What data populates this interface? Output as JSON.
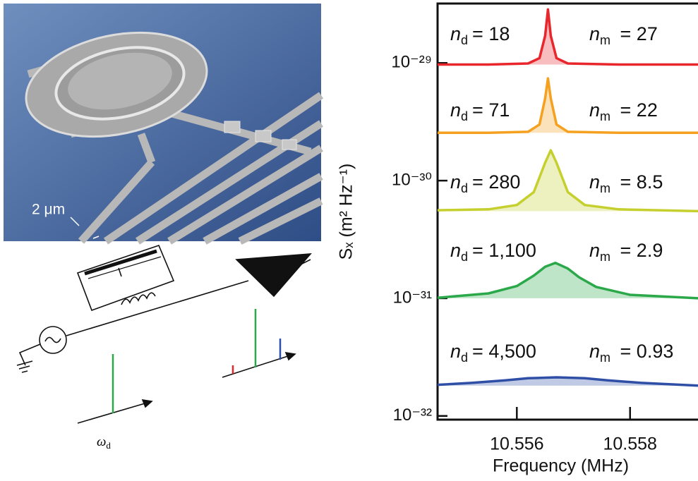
{
  "image_panel": {
    "scale_label": "2 μm"
  },
  "circuit": {
    "drive_label": {
      "symbol": "ω",
      "subscript": "d"
    }
  },
  "chart_data": {
    "type": "line",
    "x_label": "Frequency (MHz)",
    "y_label": "Sₓ (m² Hz⁻¹)",
    "xlim": [
      10.5546,
      10.5592
    ],
    "xticks": [
      10.556,
      10.558
    ],
    "ylim": [
      9.3e-33,
      3.2e-29
    ],
    "y_scale": "log",
    "yticks": [
      {
        "value": 1e-32,
        "label": "10⁻³²"
      },
      {
        "value": 1e-31,
        "label": "10⁻³¹"
      },
      {
        "value": 1e-30,
        "label": "10⁻³⁰"
      },
      {
        "value": 1e-29,
        "label": "10⁻²⁹"
      }
    ],
    "series": [
      {
        "color": "#e8262b",
        "x": [
          10.5546,
          10.5555,
          10.5562,
          10.5564,
          10.5565,
          10.55655,
          10.5566,
          10.5567,
          10.5569,
          10.5578,
          10.5592
        ],
        "values": [
          9.7e-30,
          9.7e-30,
          9.9e-30,
          1.1e-29,
          1.7e-29,
          2.85e-29,
          1.7e-29,
          1.1e-29,
          9.9e-30,
          9.7e-30,
          9.7e-30
        ]
      },
      {
        "color": "#f5a01e",
        "x": [
          10.5546,
          10.5555,
          10.5562,
          10.5564,
          10.5565,
          10.55655,
          10.5566,
          10.5567,
          10.5569,
          10.5578,
          10.5592
        ],
        "values": [
          2.55e-30,
          2.55e-30,
          2.6e-30,
          3e-30,
          5e-30,
          7.4e-30,
          5e-30,
          3e-30,
          2.6e-30,
          2.55e-30,
          2.55e-30
        ]
      },
      {
        "color": "#c5d02e",
        "x": [
          10.5546,
          10.5555,
          10.556,
          10.5563,
          10.5565,
          10.5566,
          10.5567,
          10.5569,
          10.5572,
          10.5578,
          10.5592
        ],
        "values": [
          5.6e-31,
          5.7e-31,
          6.2e-31,
          8e-31,
          1.42e-30,
          1.81e-30,
          1.42e-30,
          8e-31,
          6.2e-31,
          5.7e-31,
          5.5e-31
        ]
      },
      {
        "color": "#2ba84a",
        "x": [
          10.5546,
          10.5555,
          10.556,
          10.5563,
          10.5565,
          10.55668,
          10.5569,
          10.5571,
          10.5574,
          10.558,
          10.5592
        ],
        "values": [
          1.01e-31,
          1.1e-31,
          1.27e-31,
          1.56e-31,
          1.85e-31,
          2e-31,
          1.79e-31,
          1.51e-31,
          1.25e-31,
          1.07e-31,
          1e-31
        ]
      },
      {
        "color": "#2f4fa6",
        "x": [
          10.5546,
          10.5552,
          10.5558,
          10.5562,
          10.5567,
          10.5572,
          10.5576,
          10.5582,
          10.5592
        ],
        "values": [
          1.84e-32,
          1.91e-32,
          2.01e-32,
          2.09e-32,
          2.13e-32,
          2.09e-32,
          2.01e-32,
          1.91e-32,
          1.81e-32
        ]
      }
    ],
    "annotations": [
      {
        "nd": {
          "symbol": "n",
          "subscript": "d",
          "text": "= 18"
        },
        "nm": {
          "symbol": "n",
          "subscript": "m",
          "text": " = 27"
        }
      },
      {
        "nd": {
          "symbol": "n",
          "subscript": "d",
          "text": "= 71"
        },
        "nm": {
          "symbol": "n",
          "subscript": "m",
          "text": " = 22"
        }
      },
      {
        "nd": {
          "symbol": "n",
          "subscript": "d",
          "text": "= 280"
        },
        "nm": {
          "symbol": "n",
          "subscript": "m",
          "text": " = 8.5"
        }
      },
      {
        "nd": {
          "symbol": "n",
          "subscript": "d",
          "text": "= 1,100"
        },
        "nm": {
          "symbol": "n",
          "subscript": "m",
          "text": " = 2.9"
        }
      },
      {
        "nd": {
          "symbol": "n",
          "subscript": "d",
          "text": "= 4,500"
        },
        "nm": {
          "symbol": "n",
          "subscript": "m",
          "text": " = 0.93"
        }
      }
    ]
  }
}
